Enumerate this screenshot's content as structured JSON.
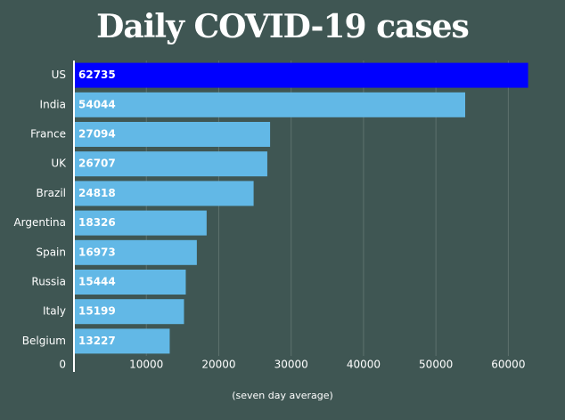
{
  "chart_data": {
    "type": "bar",
    "orientation": "horizontal",
    "title": "Daily COVID-19 cases",
    "xlabel": "(seven day average)",
    "ylabel": "",
    "categories": [
      "US",
      "India",
      "France",
      "UK",
      "Brazil",
      "Argentina",
      "Spain",
      "Russia",
      "Italy",
      "Belgium"
    ],
    "values": [
      62735,
      54044,
      27094,
      26707,
      24818,
      18326,
      16973,
      15444,
      15199,
      13227
    ],
    "xlim": [
      0,
      65000
    ],
    "xticks": [
      0,
      10000,
      20000,
      30000,
      40000,
      50000,
      60000
    ],
    "grid": true,
    "data_labels": true,
    "colors": {
      "background": "#3f5653",
      "highlight_bar": "#0000ff",
      "bar": "#62b8e6",
      "grid": "#5d716e",
      "text": "#ffffff"
    },
    "highlight_index": 0
  }
}
